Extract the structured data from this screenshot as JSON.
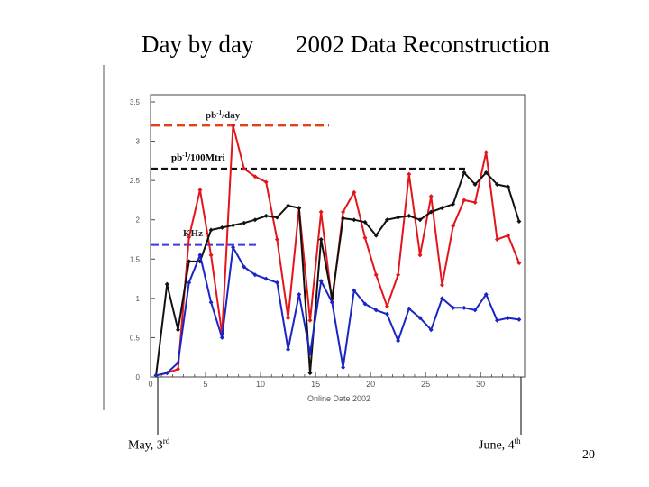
{
  "title": {
    "left": "Day by day",
    "right": "2002 Data Reconstruction"
  },
  "slide_number": "20",
  "date_start": {
    "text": "May, 3",
    "sup": "rd"
  },
  "date_end": {
    "text": "June, 4",
    "sup": "th"
  },
  "colors": {
    "red": "#e3151b",
    "black": "#111111",
    "blue": "#1a24c4",
    "orange_dash": "#e0431a",
    "blue_dash": "#3a3ae0"
  },
  "chart_data": {
    "type": "line",
    "xlabel": "Online Date 2002",
    "ylabel": "",
    "xlim": [
      0,
      34
    ],
    "ylim": [
      0,
      3.5
    ],
    "xticks": [
      "0",
      "5",
      "10",
      "15",
      "20",
      "25",
      "30"
    ],
    "yticks": [
      "0",
      "0.5",
      "1",
      "1.5",
      "2",
      "2.5",
      "3",
      "3.5"
    ],
    "reference_lines": [
      {
        "name": "pb-1/day",
        "label_base": "pb",
        "label_sup": "-1",
        "label_rest": "/day",
        "y": 3.2,
        "color": "orange_dash"
      },
      {
        "name": "pb-1/100Mtri",
        "label_base": "pb",
        "label_sup": "-1",
        "label_rest": "/100Mtri",
        "y": 2.65,
        "color": "black"
      },
      {
        "name": "KHz",
        "label_base": "KHz",
        "label_sup": "",
        "label_rest": "",
        "y": 1.68,
        "color": "blue_dash"
      }
    ],
    "series": [
      {
        "name": "red",
        "color": "red",
        "x": [
          0.5,
          1.5,
          2.5,
          3.5,
          4.5,
          5.5,
          6.5,
          7.5,
          8.5,
          9.5,
          10.5,
          11.5,
          12.5,
          13.5,
          14.5,
          15.5,
          16.5,
          17.5,
          18.5,
          19.5,
          20.5,
          21.5,
          22.5,
          23.5,
          24.5,
          25.5,
          26.5,
          27.5,
          28.5,
          29.5,
          30.5,
          31.5,
          32.5,
          33.5
        ],
        "values": [
          0.02,
          0.05,
          0.1,
          1.78,
          2.38,
          1.55,
          0.55,
          3.2,
          2.65,
          2.55,
          2.48,
          1.75,
          0.75,
          2.15,
          0.72,
          2.1,
          0.95,
          2.1,
          2.35,
          1.77,
          1.3,
          0.9,
          1.3,
          2.58,
          1.55,
          2.3,
          1.17,
          1.92,
          2.25,
          2.22,
          2.86,
          1.75,
          1.8,
          1.45
        ]
      },
      {
        "name": "black",
        "color": "black",
        "x": [
          0.5,
          1.5,
          2.5,
          3.5,
          4.5,
          5.5,
          6.5,
          7.5,
          8.5,
          9.5,
          10.5,
          11.5,
          12.5,
          13.5,
          14.5,
          15.5,
          16.5,
          17.5,
          18.5,
          19.5,
          20.5,
          21.5,
          22.5,
          23.5,
          24.5,
          25.5,
          26.5,
          27.5,
          28.5,
          29.5,
          30.5,
          31.5,
          32.5,
          33.5
        ],
        "values": [
          0.02,
          1.18,
          0.6,
          1.47,
          1.47,
          1.87,
          1.9,
          1.93,
          1.96,
          2.0,
          2.05,
          2.03,
          2.18,
          2.15,
          0.05,
          1.75,
          1.0,
          2.02,
          2.0,
          1.97,
          1.8,
          2.0,
          2.03,
          2.05,
          2.0,
          2.1,
          2.15,
          2.2,
          2.6,
          2.45,
          2.6,
          2.45,
          2.42,
          1.98
        ]
      },
      {
        "name": "blue",
        "color": "blue",
        "x": [
          0.5,
          1.5,
          2.5,
          3.5,
          4.5,
          5.5,
          6.5,
          7.5,
          8.5,
          9.5,
          10.5,
          11.5,
          12.5,
          13.5,
          14.5,
          15.5,
          16.5,
          17.5,
          18.5,
          19.5,
          20.5,
          21.5,
          22.5,
          23.5,
          24.5,
          25.5,
          26.5,
          27.5,
          28.5,
          29.5,
          30.5,
          31.5,
          32.5,
          33.5
        ],
        "values": [
          0.02,
          0.05,
          0.18,
          1.2,
          1.55,
          0.95,
          0.5,
          1.65,
          1.4,
          1.3,
          1.25,
          1.2,
          0.35,
          1.05,
          0.3,
          1.22,
          0.95,
          0.12,
          1.1,
          0.93,
          0.85,
          0.8,
          0.46,
          0.87,
          0.75,
          0.6,
          1.0,
          0.88,
          0.88,
          0.85,
          1.05,
          0.72,
          0.75,
          0.73
        ]
      }
    ]
  }
}
